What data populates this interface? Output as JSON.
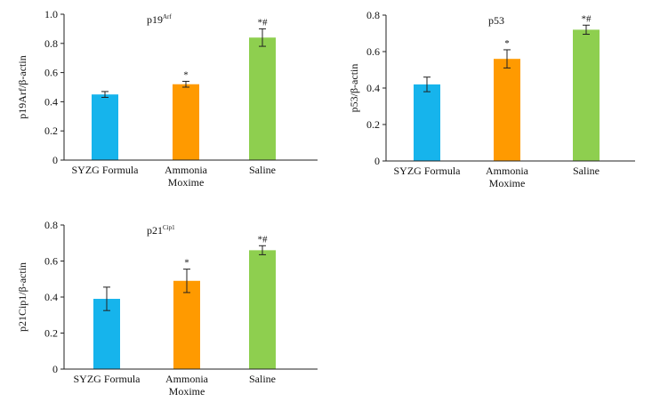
{
  "chart_data": [
    {
      "type": "bar",
      "title": "p19",
      "title_sup": "Arf",
      "ylabel": "p19Arf/β-actin",
      "categories": [
        "SYZG Formula",
        "Ammonia|Moxime",
        "Saline"
      ],
      "values": [
        0.45,
        0.52,
        0.84
      ],
      "errors": [
        0.02,
        0.02,
        0.06
      ],
      "significance": [
        "",
        "*",
        "*#"
      ],
      "colors": [
        "#16b4ec",
        "#ff9a00",
        "#8ecf4f"
      ],
      "ylim": [
        0,
        1.0
      ],
      "yticks": [
        "0",
        "0.2",
        "0.4",
        "0.6",
        "0.8",
        "1.0"
      ],
      "grid": false
    },
    {
      "type": "bar",
      "title": "p53",
      "title_sup": "",
      "ylabel": "p53/β-actin",
      "categories": [
        "SYZG Formula",
        "Ammonia|Moxime",
        "Saline"
      ],
      "values": [
        0.42,
        0.56,
        0.72
      ],
      "errors": [
        0.04,
        0.05,
        0.025
      ],
      "significance": [
        "",
        "*",
        "*#"
      ],
      "colors": [
        "#16b4ec",
        "#ff9a00",
        "#8ecf4f"
      ],
      "ylim": [
        0,
        0.8
      ],
      "yticks": [
        "0",
        "0.2",
        "0.4",
        "0.6",
        "0.8"
      ],
      "grid": false
    },
    {
      "type": "bar",
      "title": "p21",
      "title_sup": "Cip1",
      "ylabel": "p21Cip1/β-actin",
      "categories": [
        "SYZG Formula",
        "Ammonia|Moxime",
        "Saline"
      ],
      "values": [
        0.39,
        0.49,
        0.66
      ],
      "errors": [
        0.065,
        0.065,
        0.025
      ],
      "significance": [
        "",
        "*",
        "*#"
      ],
      "colors": [
        "#16b4ec",
        "#ff9a00",
        "#8ecf4f"
      ],
      "ylim": [
        0,
        0.8
      ],
      "yticks": [
        "0",
        "0.2",
        "0.4",
        "0.6",
        "0.8"
      ],
      "grid": false
    }
  ]
}
